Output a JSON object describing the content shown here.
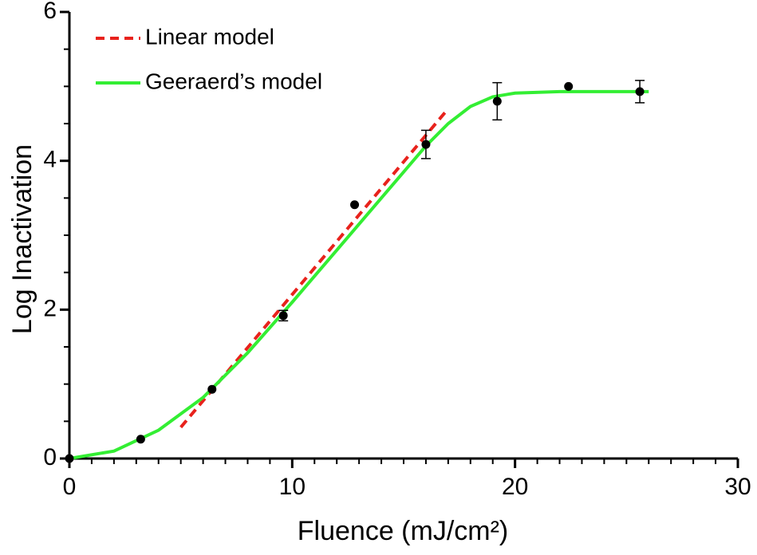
{
  "chart_data": {
    "type": "line",
    "xlabel": "Fluence (mJ/cm²)",
    "ylabel": "Log Inactivation",
    "xlim": [
      0,
      30
    ],
    "xticks": [
      0,
      10,
      20,
      30
    ],
    "xminorticks": [
      1,
      2,
      3,
      4,
      5,
      6,
      7,
      8,
      9,
      11,
      12,
      13,
      14,
      15,
      16,
      17,
      18,
      19,
      21,
      22,
      23,
      24,
      25,
      26,
      27,
      28,
      29
    ],
    "ylim": [
      0,
      6
    ],
    "yticks": [
      0,
      2,
      4,
      6
    ],
    "yminorticks": [
      0.5,
      1,
      1.5,
      2.5,
      3,
      3.5,
      4.5,
      5,
      5.5
    ],
    "legend": "top-left",
    "series": [
      {
        "style": "points",
        "color": "#000000",
        "x": [
          0,
          3.2,
          6.4,
          9.6,
          12.8,
          16,
          19.2,
          22.4,
          25.6
        ],
        "values": [
          0,
          0.26,
          0.93,
          1.92,
          3.41,
          4.22,
          4.8,
          5.0,
          4.93
        ],
        "errors": [
          null,
          null,
          null,
          0.07,
          null,
          0.19,
          0.25,
          null,
          0.15
        ]
      },
      {
        "name": "Linear model",
        "style": "dashed",
        "color": "#e8221c",
        "x": [
          5,
          17
        ],
        "values": [
          0.42,
          4.7
        ]
      },
      {
        "name": "Geeraerd’s model",
        "style": "solid",
        "color": "#33ee33",
        "x": [
          0,
          2,
          4,
          6,
          8,
          10,
          12,
          14,
          16,
          17,
          18,
          19,
          20,
          22,
          24,
          26
        ],
        "values": [
          0,
          0.1,
          0.38,
          0.82,
          1.42,
          2.1,
          2.8,
          3.5,
          4.2,
          4.5,
          4.73,
          4.86,
          4.91,
          4.93,
          4.93,
          4.93
        ]
      }
    ]
  }
}
